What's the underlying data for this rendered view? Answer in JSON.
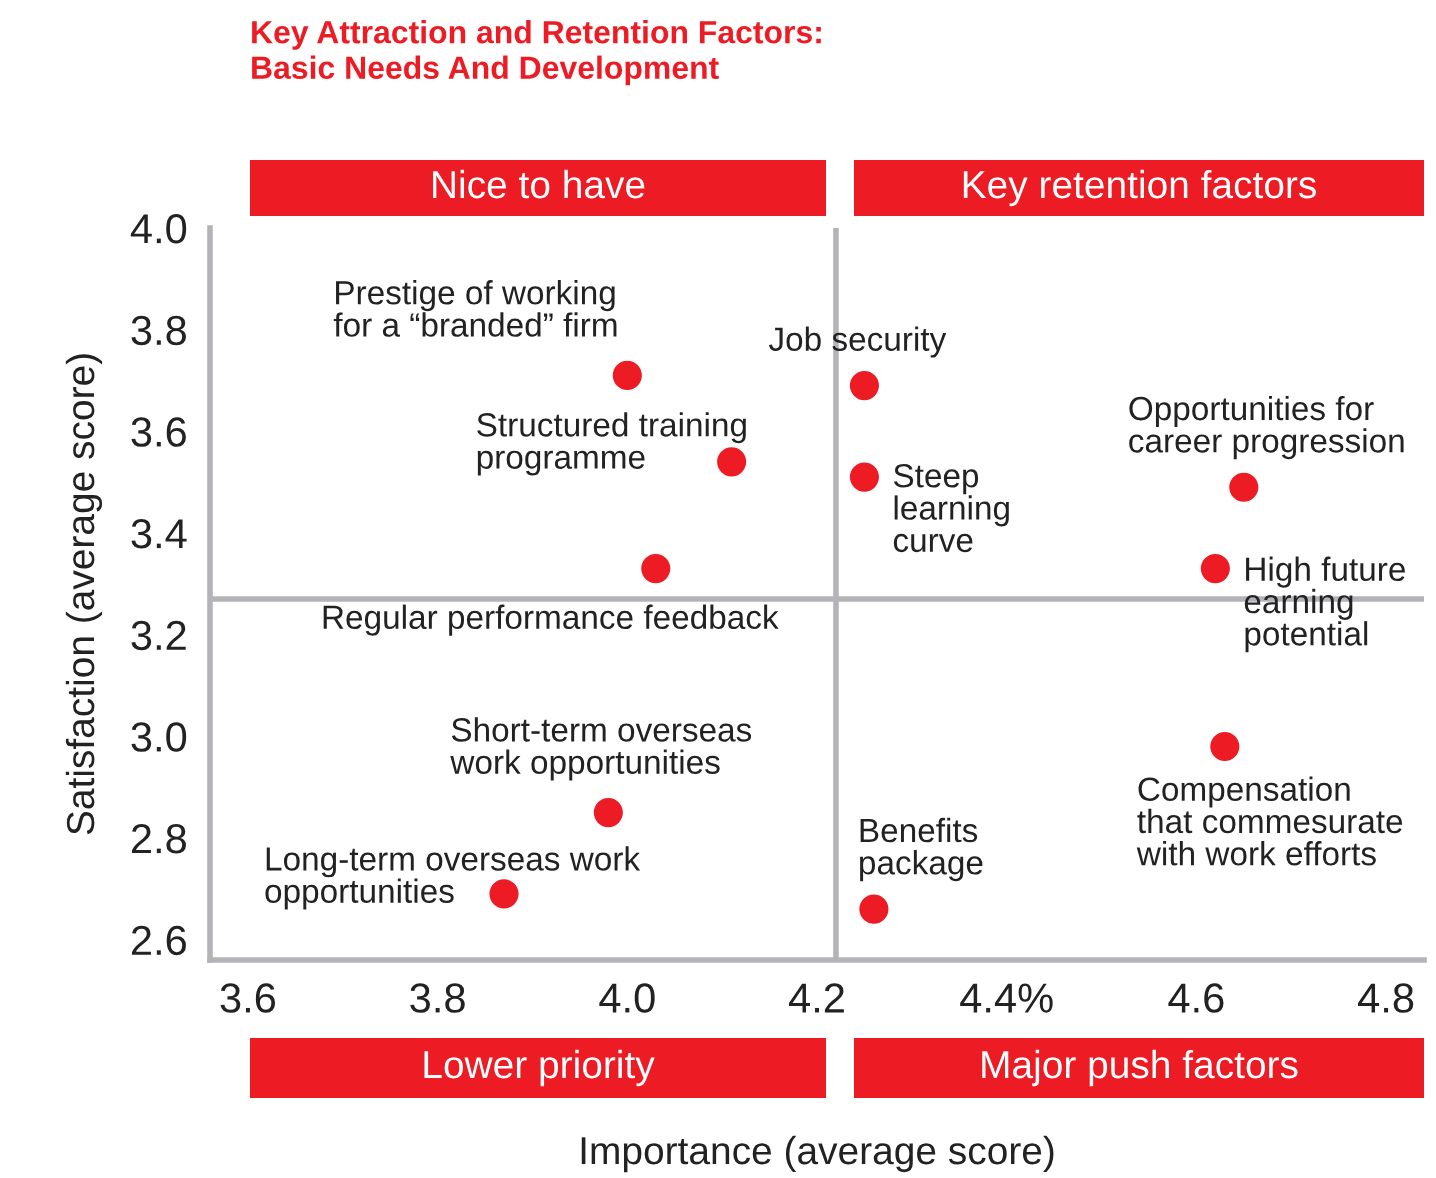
{
  "chart_data": {
    "type": "scatter",
    "title": "Key Attraction and Retention Factors:\nBasic Needs And Development",
    "xlabel": "Importance (average score)",
    "ylabel": "Satisfaction (average score)",
    "x": [
      4.0,
      4.11,
      4.03,
      3.98,
      3.87,
      4.25,
      4.25,
      4.65,
      4.62,
      4.63,
      4.26
    ],
    "values": [
      3.71,
      3.54,
      3.33,
      2.85,
      2.69,
      3.69,
      3.51,
      3.49,
      3.33,
      2.98,
      2.66
    ],
    "color": "#ed1c24",
    "marker": "circle",
    "xlim": [
      3.56,
      4.84
    ],
    "ylim": [
      2.56,
      4.0
    ],
    "xticks": [
      {
        "value": 3.6,
        "label": "3.6"
      },
      {
        "value": 3.8,
        "label": "3.8"
      },
      {
        "value": 4.0,
        "label": "4.0"
      },
      {
        "value": 4.2,
        "label": "4.2"
      },
      {
        "value": 4.4,
        "label": "4.4%"
      },
      {
        "value": 4.6,
        "label": "4.6"
      },
      {
        "value": 4.8,
        "label": "4.8"
      }
    ],
    "yticks": [
      {
        "value": 2.6,
        "label": "2.6"
      },
      {
        "value": 2.8,
        "label": "2.8"
      },
      {
        "value": 3.0,
        "label": "3.0"
      },
      {
        "value": 3.2,
        "label": "3.2"
      },
      {
        "value": 3.4,
        "label": "3.4"
      },
      {
        "value": 3.6,
        "label": "3.6"
      },
      {
        "value": 3.8,
        "label": "3.8"
      },
      {
        "value": 4.0,
        "label": "4.0"
      }
    ],
    "ref_lines": [
      {
        "axis": "x",
        "value": 4.22,
        "color": "#b3b3b8"
      },
      {
        "axis": "y",
        "value": 3.27,
        "color": "#b3b3b8"
      }
    ],
    "annotations": [
      "Nice to have",
      "Key retention factors",
      "Lower priority",
      "Major push factors",
      {
        "text": "Prestige of working\nfor a “branded” firm",
        "x": 4.0,
        "y": 3.71
      },
      {
        "text": "Structured training\nprogramme",
        "x": 4.11,
        "y": 3.54
      },
      {
        "text": "Regular performance feedback",
        "x": 4.03,
        "y": 3.33
      },
      {
        "text": "Short-term overseas\nwork opportunities",
        "x": 3.98,
        "y": 2.85
      },
      {
        "text": "Long-term overseas work\nopportunities",
        "x": 3.87,
        "y": 2.69
      },
      {
        "text": "Job security",
        "x": 4.25,
        "y": 3.69
      },
      {
        "text": "Steep\nlearning\ncurve",
        "x": 4.25,
        "y": 3.51
      },
      {
        "text": "Opportunities for\ncareer progression",
        "x": 4.65,
        "y": 3.49
      },
      {
        "text": "High future\nearning\npotential",
        "x": 4.62,
        "y": 3.33
      },
      {
        "text": "Compensation\nthat commesurate\nwith work efforts",
        "x": 4.63,
        "y": 2.98
      },
      {
        "text": "Benefits\npackage",
        "x": 4.26,
        "y": 2.66
      }
    ]
  }
}
